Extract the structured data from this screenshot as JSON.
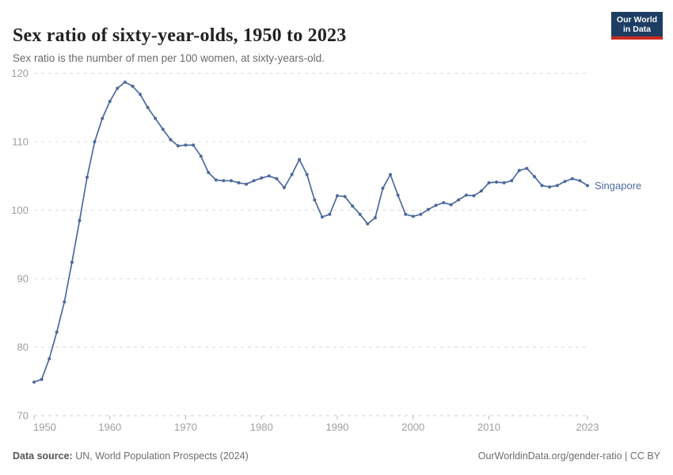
{
  "header": {
    "title": "Sex ratio of sixty-year-olds, 1950 to 2023",
    "subtitle": "Sex ratio is the number of men per 100 women, at sixty-years-old.",
    "logo_line1": "Our World",
    "logo_line2": "in Data"
  },
  "chart_data": {
    "type": "line",
    "title": "Sex ratio of sixty-year-olds, 1950 to 2023",
    "xlabel": "",
    "ylabel": "",
    "xlim": [
      1950,
      2023
    ],
    "ylim": [
      70,
      120
    ],
    "y_ticks": [
      70,
      80,
      90,
      100,
      110,
      120
    ],
    "x_ticks": [
      1950,
      1960,
      1970,
      1980,
      1990,
      2000,
      2010,
      2023
    ],
    "grid": "horizontal-dashed",
    "legend_position": "end-of-line-label",
    "series": [
      {
        "name": "Singapore",
        "x": [
          1950,
          1951,
          1952,
          1953,
          1954,
          1955,
          1956,
          1957,
          1958,
          1959,
          1960,
          1961,
          1962,
          1963,
          1964,
          1965,
          1966,
          1967,
          1968,
          1969,
          1970,
          1971,
          1972,
          1973,
          1974,
          1975,
          1976,
          1977,
          1978,
          1979,
          1980,
          1981,
          1982,
          1983,
          1984,
          1985,
          1986,
          1987,
          1988,
          1989,
          1990,
          1991,
          1992,
          1993,
          1994,
          1995,
          1996,
          1997,
          1998,
          1999,
          2000,
          2001,
          2002,
          2003,
          2004,
          2005,
          2006,
          2007,
          2008,
          2009,
          2010,
          2011,
          2012,
          2013,
          2014,
          2015,
          2016,
          2017,
          2018,
          2019,
          2020,
          2021,
          2022,
          2023
        ],
        "values": [
          74.9,
          75.3,
          78.3,
          82.2,
          86.6,
          92.4,
          98.5,
          104.8,
          110.0,
          113.4,
          115.9,
          117.8,
          118.7,
          118.1,
          116.9,
          115.0,
          113.4,
          111.8,
          110.3,
          109.4,
          109.5,
          109.5,
          107.9,
          105.5,
          104.4,
          104.3,
          104.3,
          104.0,
          103.8,
          104.3,
          104.7,
          105.0,
          104.6,
          103.3,
          105.2,
          107.4,
          105.2,
          101.5,
          99.0,
          99.4,
          102.1,
          102.0,
          100.6,
          99.4,
          98.0,
          98.9,
          103.2,
          105.2,
          102.2,
          99.4,
          99.1,
          99.4,
          100.1,
          100.7,
          101.1,
          100.8,
          101.5,
          102.2,
          102.1,
          102.8,
          104.0,
          104.1,
          104.0,
          104.3,
          105.8,
          106.1,
          104.9,
          103.6,
          103.4,
          103.6,
          104.2,
          104.6,
          104.3,
          103.6
        ]
      }
    ],
    "entity_label": "Singapore"
  },
  "footer": {
    "source_label": "Data source:",
    "source_text": " UN, World Population Prospects (2024)",
    "link_text": "OurWorldinData.org/gender-ratio | CC BY"
  },
  "colors": {
    "line": "#4C6A9C",
    "grid": "#dcdcdc",
    "axis_line": "#cfcfcf",
    "tick": "#b8b8b8",
    "axis_text": "#9e9e9e",
    "entity_label": "#4C6A9C",
    "logo_bg": "#1d3d63",
    "logo_stripe": "#cb2a20"
  }
}
